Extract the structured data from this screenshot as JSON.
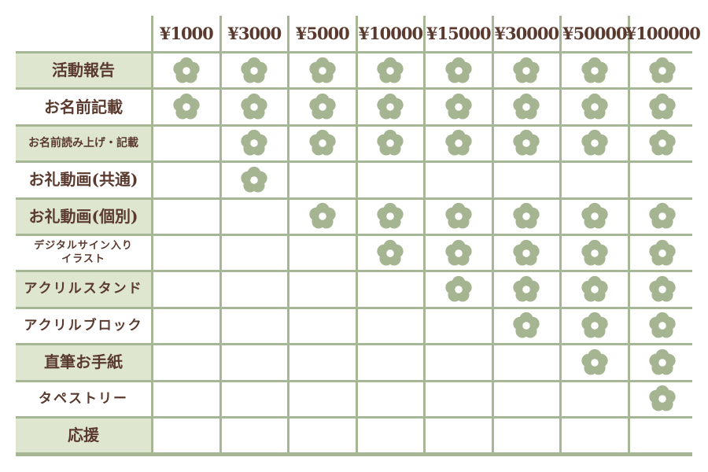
{
  "colors": {
    "border": "#a7b795",
    "label_tint": "#dfe6cf",
    "flower": "#a5b592",
    "text": "#5a3a2e"
  },
  "tiers": [
    "¥1000",
    "¥3000",
    "¥5000",
    "¥10000",
    "¥15000",
    "¥30000",
    "¥50000",
    "¥100000"
  ],
  "rows": [
    {
      "label": "活動報告",
      "included": [
        true,
        true,
        true,
        true,
        true,
        true,
        true,
        true
      ]
    },
    {
      "label": "お名前記載",
      "included": [
        true,
        true,
        true,
        true,
        true,
        true,
        true,
        true
      ]
    },
    {
      "label": "お名前読み上げ・記載",
      "included": [
        false,
        true,
        true,
        true,
        true,
        true,
        true,
        true
      ]
    },
    {
      "label": "お礼動画(共通)",
      "included": [
        false,
        true,
        false,
        false,
        false,
        false,
        false,
        false
      ]
    },
    {
      "label": "お礼動画(個別)",
      "included": [
        false,
        false,
        true,
        true,
        true,
        true,
        true,
        true
      ]
    },
    {
      "label": "デジタルサイン入り\nイラスト",
      "included": [
        false,
        false,
        false,
        true,
        true,
        true,
        true,
        true
      ]
    },
    {
      "label": "アクリルスタンド",
      "included": [
        false,
        false,
        false,
        false,
        true,
        true,
        true,
        true
      ]
    },
    {
      "label": "アクリルブロック",
      "included": [
        false,
        false,
        false,
        false,
        false,
        true,
        true,
        true
      ]
    },
    {
      "label": "直筆お手紙",
      "included": [
        false,
        false,
        false,
        false,
        false,
        false,
        true,
        true
      ]
    },
    {
      "label": "タペストリー",
      "included": [
        false,
        false,
        false,
        false,
        false,
        false,
        false,
        true
      ]
    },
    {
      "label": "応援",
      "included": [
        false,
        false,
        false,
        false,
        false,
        false,
        false,
        false
      ]
    }
  ],
  "icons": {
    "included": "flower-icon"
  }
}
